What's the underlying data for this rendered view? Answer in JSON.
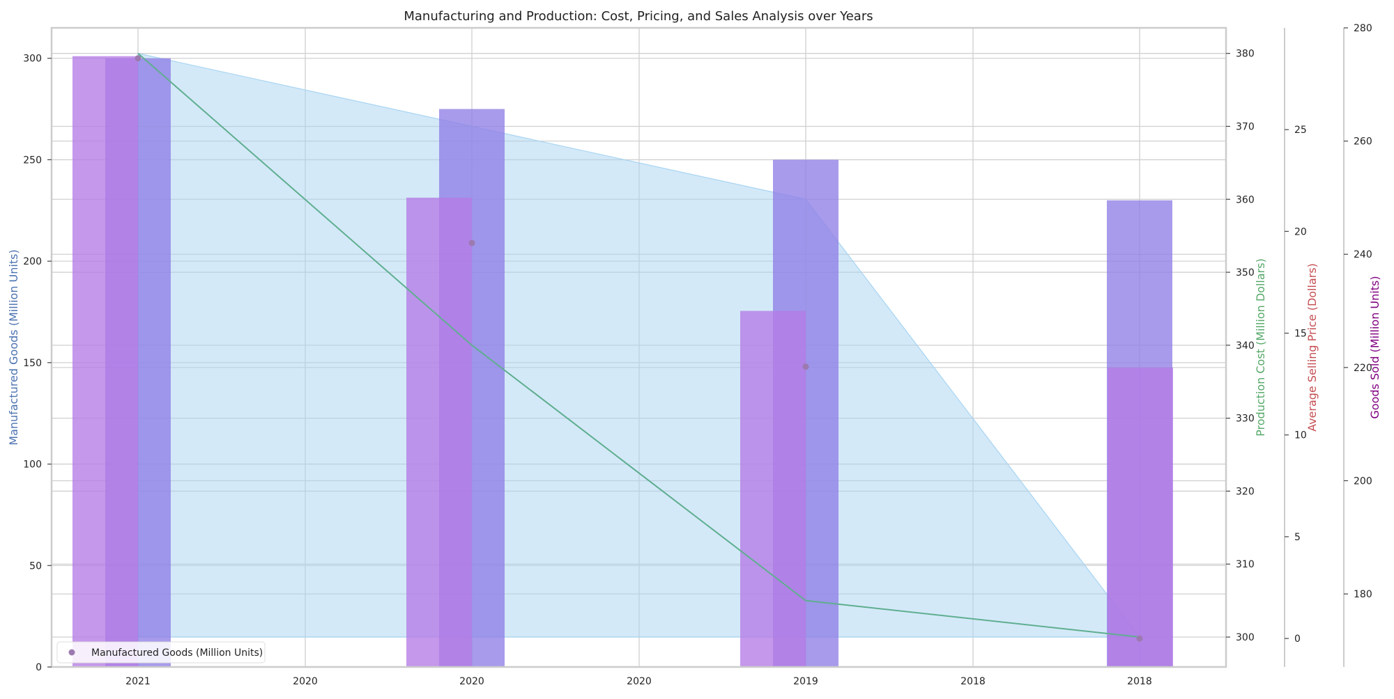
{
  "chart_data": {
    "type": "bar",
    "title": "Manufacturing and Production: Cost, Pricing, and Sales Analysis over Years",
    "years": [
      2021,
      2020,
      2019,
      2018
    ],
    "x_tick_labels": [
      "2021",
      "2020",
      "2020",
      "2020",
      "2019",
      "2018",
      "2018"
    ],
    "grid": true,
    "legend": {
      "position": "lower-left",
      "entries": [
        "Manufactured Goods (Million Units)"
      ]
    },
    "axes": {
      "manufactured": {
        "label": "Manufactured Goods (Million Units)",
        "range": [
          0,
          315
        ],
        "ticks": [
          0,
          50,
          100,
          150,
          200,
          250,
          300
        ],
        "color": "#4c72b0"
      },
      "production_cost": {
        "label": "Production Cost (Million Dollars)",
        "range": [
          295.9,
          383.5
        ],
        "ticks": [
          300,
          310,
          320,
          330,
          340,
          350,
          360,
          370,
          380
        ],
        "color": "#55a868"
      },
      "avg_price": {
        "label": "Average Selling Price (Dollars)",
        "range": [
          -1.4,
          30
        ],
        "ticks": [
          0,
          5,
          10,
          15,
          20,
          25
        ],
        "color": "#c44e52"
      },
      "goods_sold": {
        "label": "Goods Sold (Million Units)",
        "range": [
          167.1,
          280
        ],
        "ticks": [
          180,
          200,
          220,
          240,
          260,
          280
        ],
        "color": "#800080"
      }
    },
    "series": [
      {
        "name": "Manufactured Goods (Million Units)",
        "kind": "scatter",
        "axis": "manufactured",
        "values": [
          300,
          209,
          148,
          14
        ],
        "color": "#9c7ab0"
      },
      {
        "kind": "bar",
        "axis": "manufactured",
        "values": [
          300,
          275,
          250,
          230
        ],
        "color": "#8f7fe6"
      },
      {
        "kind": "bar",
        "axis": "goods_sold",
        "values": [
          275,
          250,
          230,
          220
        ],
        "color": "#b57be6"
      },
      {
        "kind": "area",
        "axis": "production_cost",
        "values": [
          380,
          370,
          360,
          300
        ],
        "color": "#a8d4f2"
      },
      {
        "kind": "line",
        "axis": "production_cost",
        "values": [
          380,
          340,
          305,
          300
        ],
        "color": "#5fae8f"
      }
    ]
  }
}
